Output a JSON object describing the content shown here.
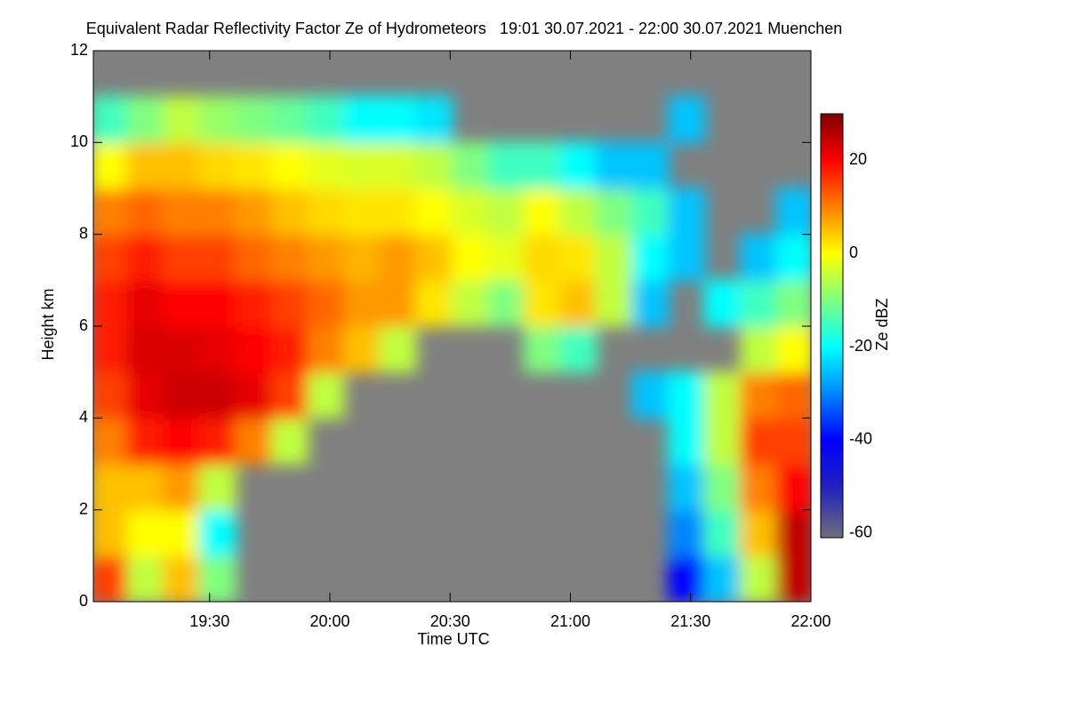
{
  "chart_data": {
    "type": "heatmap",
    "title": "Equivalent Radar Reflectivity Factor Ze of Hydrometeors   19:01 30.07.2021 - 22:00 30.07.2021 Muenchen",
    "x_label": "Time UTC",
    "y_label": "Height km",
    "colorbar_label": "Ze dBZ",
    "background": "#808080",
    "xlim": [
      "19:01",
      "22:00"
    ],
    "xticks": [
      "19:30",
      "20:00",
      "20:30",
      "21:00",
      "21:30",
      "22:00"
    ],
    "ylim": [
      0,
      12
    ],
    "yticks": [
      0,
      2,
      4,
      6,
      8,
      10,
      12
    ],
    "zlim": [
      -61,
      30
    ],
    "zticks": [
      -60,
      -40,
      -20,
      0,
      20
    ],
    "colorscale": [
      {
        "value": -61,
        "color": "#6e6e7a"
      },
      {
        "value": -50,
        "color": "#2020c0"
      },
      {
        "value": -40,
        "color": "#0000ff"
      },
      {
        "value": -28,
        "color": "#00a0ff"
      },
      {
        "value": -20,
        "color": "#00ffff"
      },
      {
        "value": -10,
        "color": "#80ff80"
      },
      {
        "value": 0,
        "color": "#ffff00"
      },
      {
        "value": 10,
        "color": "#ff8000"
      },
      {
        "value": 20,
        "color": "#ff0000"
      },
      {
        "value": 30,
        "color": "#800000"
      }
    ],
    "x": [
      "19:05",
      "19:14",
      "19:23",
      "19:32",
      "19:41",
      "19:50",
      "19:59",
      "20:08",
      "20:17",
      "20:26",
      "20:35",
      "20:44",
      "20:53",
      "21:02",
      "21:11",
      "21:20",
      "21:29",
      "21:38",
      "21:47",
      "21:56"
    ],
    "y": [
      0.5,
      1.5,
      2.5,
      3.5,
      4.5,
      5.5,
      6.5,
      7.5,
      8.5,
      9.5,
      10.5,
      11.5
    ],
    "z": [
      [
        15,
        -5,
        5,
        -10,
        null,
        null,
        null,
        null,
        null,
        null,
        null,
        null,
        null,
        null,
        null,
        null,
        -40,
        -25,
        -5,
        25
      ],
      [
        5,
        0,
        0,
        -20,
        null,
        null,
        null,
        null,
        null,
        null,
        null,
        null,
        null,
        null,
        null,
        null,
        -30,
        -15,
        5,
        25
      ],
      [
        5,
        5,
        8,
        -5,
        null,
        null,
        null,
        null,
        null,
        null,
        null,
        null,
        null,
        null,
        null,
        null,
        -25,
        -10,
        10,
        20
      ],
      [
        10,
        18,
        20,
        18,
        10,
        -5,
        null,
        null,
        null,
        null,
        null,
        null,
        null,
        null,
        null,
        null,
        -20,
        -5,
        15,
        15
      ],
      [
        15,
        22,
        24,
        24,
        22,
        15,
        -5,
        null,
        null,
        null,
        null,
        null,
        null,
        null,
        null,
        -25,
        -20,
        -5,
        10,
        12
      ],
      [
        18,
        23,
        23,
        22,
        20,
        18,
        10,
        5,
        -5,
        null,
        null,
        null,
        -10,
        -15,
        null,
        null,
        null,
        null,
        -5,
        0
      ],
      [
        18,
        22,
        20,
        20,
        18,
        15,
        12,
        8,
        8,
        2,
        -5,
        -10,
        2,
        5,
        -5,
        -25,
        null,
        -20,
        -15,
        -10
      ],
      [
        15,
        18,
        15,
        15,
        12,
        10,
        8,
        6,
        8,
        5,
        0,
        -2,
        3,
        2,
        -5,
        -20,
        -25,
        null,
        -25,
        -20
      ],
      [
        10,
        12,
        10,
        10,
        8,
        5,
        3,
        2,
        2,
        0,
        -3,
        -5,
        0,
        -5,
        -10,
        -15,
        -25,
        null,
        null,
        -25
      ],
      [
        0,
        5,
        5,
        3,
        2,
        0,
        -2,
        -3,
        -3,
        -5,
        -10,
        -15,
        -15,
        -20,
        -25,
        -25,
        null,
        null,
        null,
        null
      ],
      [
        -15,
        -10,
        -5,
        -8,
        -10,
        -12,
        -15,
        -20,
        -20,
        -22,
        null,
        null,
        null,
        null,
        null,
        null,
        -25,
        null,
        null,
        null
      ],
      [
        null,
        null,
        null,
        null,
        null,
        null,
        null,
        null,
        null,
        null,
        null,
        null,
        null,
        null,
        null,
        null,
        null,
        null,
        null,
        null
      ]
    ]
  }
}
